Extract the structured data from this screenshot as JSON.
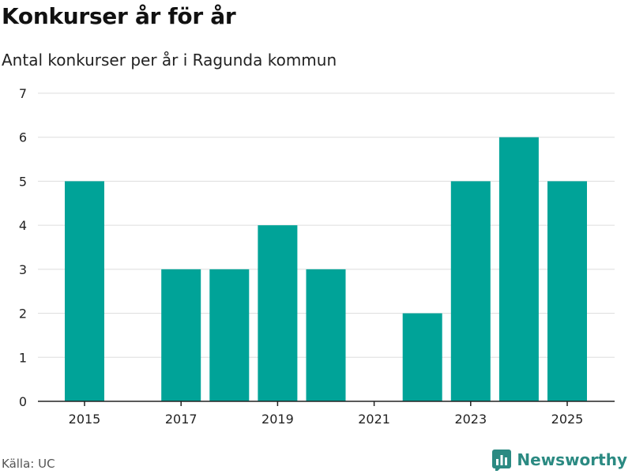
{
  "header": {
    "title": "Konkurser år för år",
    "subtitle": "Antal konkurser per år i Ragunda kommun"
  },
  "footer": {
    "source": "Källa: UC",
    "brand": "Newsworthy"
  },
  "colors": {
    "bar": "#00a398",
    "grid": "#dddddd",
    "axis": "#222222",
    "brand": "#2b8a82"
  },
  "chart_data": {
    "type": "bar",
    "title": "Konkurser år för år",
    "subtitle": "Antal konkurser per år i Ragunda kommun",
    "xlabel": "",
    "ylabel": "",
    "categories": [
      "2015",
      "2016",
      "2017",
      "2018",
      "2019",
      "2020",
      "2021",
      "2022",
      "2023",
      "2024",
      "2025"
    ],
    "values": [
      5,
      0,
      3,
      3,
      4,
      3,
      0,
      2,
      5,
      6,
      5
    ],
    "x_tick_labels": [
      "2015",
      "2017",
      "2019",
      "2021",
      "2023",
      "2025"
    ],
    "y_ticks": [
      0,
      1,
      2,
      3,
      4,
      5,
      6,
      7
    ],
    "ylim": [
      0,
      7
    ],
    "grid": true,
    "legend": "none"
  }
}
